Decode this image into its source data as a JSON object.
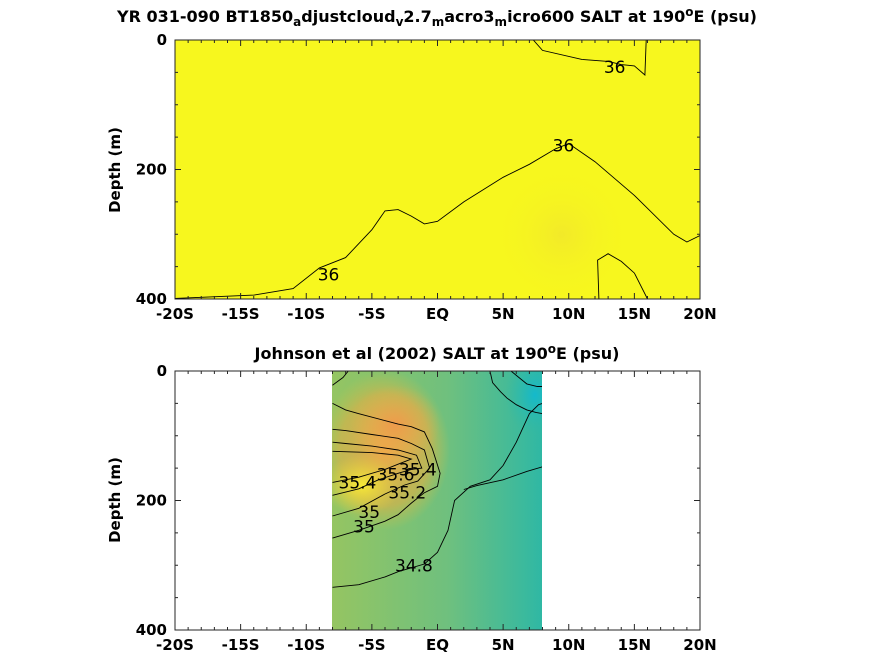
{
  "chart_data": [
    {
      "type": "heatmap",
      "title_parts": [
        {
          "t": "YR 031-090 BT1850",
          "s": "n"
        },
        {
          "t": "a",
          "s": "sub"
        },
        {
          "t": "djustcloud",
          "s": "n"
        },
        {
          "t": "v",
          "s": "sub"
        },
        {
          "t": "2.7",
          "s": "n"
        },
        {
          "t": "m",
          "s": "sub"
        },
        {
          "t": "acro3",
          "s": "n"
        },
        {
          "t": "m",
          "s": "sub"
        },
        {
          "t": "icro600 SALT at 190",
          "s": "n"
        },
        {
          "t": "o",
          "s": "sup"
        },
        {
          "t": "E (psu)",
          "s": "n"
        }
      ],
      "ylabel": "Depth (m)",
      "xlim": [
        -20,
        20
      ],
      "ylim": [
        0,
        400
      ],
      "y_inverted": true,
      "x_ticks": [
        -20,
        -15,
        -10,
        -5,
        0,
        5,
        10,
        15,
        20
      ],
      "x_tick_labels": [
        "-20S",
        "-15S",
        "-10S",
        "-5S",
        "EQ",
        "5N",
        "10N",
        "15N",
        "20N"
      ],
      "y_ticks": [
        0,
        200,
        400
      ],
      "y_tick_labels": [
        "0",
        "200",
        "400"
      ],
      "fill_colors": [
        "#f7f71e",
        "#f1e62c"
      ],
      "contours": [
        {
          "level": 36,
          "label": "36",
          "points": [
            [
              -20,
              399
            ],
            [
              -14,
              394
            ],
            [
              -11,
              384
            ],
            [
              -9,
              352
            ],
            [
              -7,
              336
            ],
            [
              -5,
              293
            ],
            [
              -4,
              264
            ],
            [
              -3,
              262
            ],
            [
              -2,
              272
            ],
            [
              -1,
              284
            ],
            [
              0,
              280
            ],
            [
              2,
              250
            ],
            [
              5,
              212
            ],
            [
              7,
              192
            ],
            [
              9,
              168
            ],
            [
              10,
              160
            ],
            [
              12,
              188
            ],
            [
              15,
              240
            ],
            [
              18,
              300
            ],
            [
              19,
              312
            ],
            [
              20,
              302
            ]
          ]
        },
        {
          "level": 36,
          "label": "36",
          "points": [
            [
              7.3,
              0
            ],
            [
              8,
              16
            ],
            [
              11,
              30
            ],
            [
              13,
              33
            ],
            [
              14,
              38
            ],
            [
              15,
              40
            ],
            [
              15.8,
              54
            ],
            [
              15.9,
              0
            ]
          ]
        },
        {
          "level": 36,
          "label": "",
          "points": [
            [
              12.3,
              400
            ],
            [
              12.2,
              340
            ],
            [
              13,
              330
            ],
            [
              14,
              342
            ],
            [
              15,
              360
            ],
            [
              16,
              400
            ]
          ]
        }
      ],
      "contour_labels": [
        {
          "text": "36",
          "x": 13.5,
          "y": 42
        },
        {
          "text": "36",
          "x": 9.6,
          "y": 163
        },
        {
          "text": "36",
          "x": -8.3,
          "y": 362
        }
      ]
    },
    {
      "type": "heatmap",
      "title_parts": [
        {
          "t": "Johnson et al (2002) SALT at 190",
          "s": "n"
        },
        {
          "t": "o",
          "s": "sup"
        },
        {
          "t": "E (psu)",
          "s": "n"
        }
      ],
      "ylabel": "Depth (m)",
      "xlim": [
        -20,
        20
      ],
      "ylim": [
        0,
        400
      ],
      "y_inverted": true,
      "data_x_range": [
        -8,
        8
      ],
      "x_ticks": [
        -20,
        -15,
        -10,
        -5,
        0,
        5,
        10,
        15,
        20
      ],
      "x_tick_labels": [
        "-20S",
        "-15S",
        "-10S",
        "-5S",
        "EQ",
        "5N",
        "10N",
        "15N",
        "20N"
      ],
      "y_ticks": [
        0,
        200,
        400
      ],
      "y_tick_labels": [
        "0",
        "200",
        "400"
      ],
      "fill_colors": [
        "#f7e93a",
        "#eea94a",
        "#c6c24c",
        "#95c562",
        "#6fc07e",
        "#46bb8c",
        "#30b9a6",
        "#14b9cc"
      ],
      "contours": [
        {
          "level": 34.8,
          "label": "34.8",
          "points": [
            [
              -8,
              334
            ],
            [
              -6,
              330
            ],
            [
              -4,
              318
            ],
            [
              -3,
              310
            ],
            [
              -1,
              298
            ],
            [
              0,
              280
            ],
            [
              0.8,
              246
            ],
            [
              1.3,
              200
            ],
            [
              2.5,
              178
            ],
            [
              4,
              168
            ],
            [
              5,
              146
            ],
            [
              6,
              110
            ],
            [
              7,
              66
            ],
            [
              7.7,
              52
            ],
            [
              8,
              50
            ]
          ]
        },
        {
          "level": 35,
          "label": "35",
          "points": [
            [
              -8,
              258
            ],
            [
              -6,
              246
            ],
            [
              -4,
              232
            ],
            [
              -3,
              222
            ],
            [
              -2,
              204
            ],
            [
              -1,
              188
            ],
            [
              0,
              178
            ],
            [
              0.2,
              158
            ],
            [
              -0.4,
              120
            ],
            [
              -1,
              94
            ],
            [
              -2,
              86
            ],
            [
              -3,
              82
            ],
            [
              -6,
              66
            ],
            [
              -7,
              60
            ],
            [
              -8,
              50
            ]
          ]
        },
        {
          "level": 35.2,
          "label": "35.2",
          "points": [
            [
              -8,
              224
            ],
            [
              -6,
              212
            ],
            [
              -4,
              190
            ],
            [
              -2.5,
              176
            ],
            [
              -1.5,
              170
            ],
            [
              -0.6,
              150
            ],
            [
              -1,
              122
            ],
            [
              -2,
              112
            ],
            [
              -3,
              104
            ],
            [
              -5,
              98
            ],
            [
              -7,
              92
            ],
            [
              -8,
              90
            ]
          ]
        },
        {
          "level": 35.4,
          "label": "35.4",
          "points": [
            [
              -8,
              192
            ],
            [
              -6,
              182
            ],
            [
              -4.5,
              168
            ],
            [
              -3,
              158
            ],
            [
              -2,
              152
            ],
            [
              -1.2,
              150
            ],
            [
              -1.6,
              130
            ],
            [
              -3,
              122
            ],
            [
              -5,
              116
            ],
            [
              -7,
              112
            ],
            [
              -8,
              110
            ]
          ]
        },
        {
          "level": 35.6,
          "label": "35.6",
          "points": [
            [
              -8,
              172
            ],
            [
              -6,
              164
            ],
            [
              -4,
              152
            ],
            [
              -3,
              144
            ],
            [
              -2,
              136
            ],
            [
              -3,
              130
            ],
            [
              -5,
              126
            ],
            [
              -8,
              124
            ]
          ]
        },
        {
          "level": 34.8,
          "label": "",
          "points": [
            [
              -8,
              22
            ],
            [
              -7.2,
              10
            ],
            [
              -6.8,
              0
            ]
          ]
        },
        {
          "level": 34.6,
          "label": "",
          "points": [
            [
              4,
              0
            ],
            [
              4.2,
              18
            ],
            [
              4.8,
              32
            ],
            [
              5.3,
              42
            ],
            [
              6,
              52
            ],
            [
              6.8,
              60
            ],
            [
              7.5,
              64
            ],
            [
              8,
              66
            ]
          ]
        },
        {
          "level": 34.4,
          "label": "",
          "points": [
            [
              5.6,
              0
            ],
            [
              6.2,
              10
            ],
            [
              6.8,
              20
            ],
            [
              7.6,
              24
            ],
            [
              8,
              24
            ]
          ]
        },
        {
          "level": 34.6,
          "label": "",
          "points": [
            [
              2,
              183
            ],
            [
              3,
              177
            ],
            [
              5,
              168
            ],
            [
              6.8,
              155
            ],
            [
              8,
              148
            ]
          ]
        }
      ],
      "contour_labels": [
        {
          "text": "34.8",
          "x": -1.8,
          "y": 300
        },
        {
          "text": "35",
          "x": -5.6,
          "y": 240
        },
        {
          "text": "35",
          "x": -5.2,
          "y": 218
        },
        {
          "text": "35.2",
          "x": -2.3,
          "y": 188
        },
        {
          "text": "35.4",
          "x": -6.1,
          "y": 172
        },
        {
          "text": "35.6",
          "x": -3.2,
          "y": 160
        },
        {
          "text": "35.4",
          "x": -1.5,
          "y": 152
        }
      ]
    }
  ]
}
